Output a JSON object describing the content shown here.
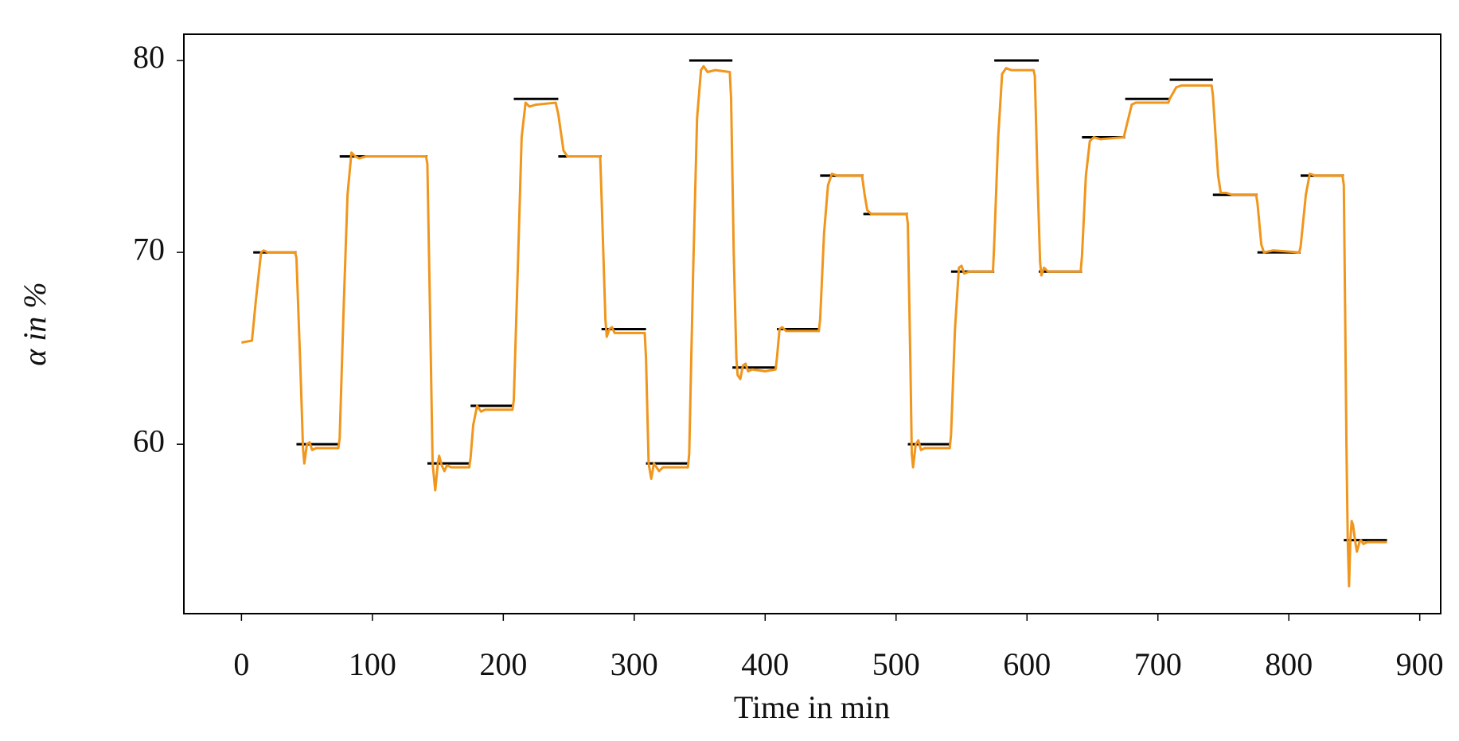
{
  "chart_data": {
    "type": "line",
    "x_label": "Time in min",
    "y_label": "α in %",
    "xlim": [
      -44,
      916
    ],
    "ylim": [
      51.17,
      81.37
    ],
    "xticks": [
      0,
      100,
      200,
      300,
      400,
      500,
      600,
      700,
      800,
      900
    ],
    "yticks": [
      60,
      70,
      80
    ],
    "series": [
      {
        "color": "#f0961c",
        "x": [
          0,
          8,
          11,
          15,
          17,
          20,
          41,
          42,
          45,
          47,
          48,
          50,
          52,
          54,
          57,
          74,
          75,
          78,
          81,
          84,
          87,
          90,
          95,
          141,
          142,
          144,
          146,
          147,
          148,
          150,
          151,
          153,
          155,
          157,
          160,
          174,
          175,
          177,
          180,
          183,
          186,
          207,
          208,
          211,
          214,
          217,
          220,
          225,
          240,
          242,
          246,
          249,
          274,
          275,
          278,
          279,
          281,
          283,
          285,
          308,
          309,
          311,
          312,
          313,
          315,
          317,
          319,
          322,
          341,
          342,
          345,
          348,
          351,
          353,
          356,
          362,
          373,
          374,
          376,
          378,
          379,
          381,
          383,
          385,
          387,
          390,
          400,
          408,
          409,
          411,
          413,
          416,
          441,
          442,
          445,
          448,
          451,
          455,
          474,
          476,
          478,
          481,
          508,
          509,
          511,
          512,
          513,
          515,
          517,
          519,
          522,
          541,
          542,
          545,
          548,
          550,
          552,
          556,
          574,
          575,
          578,
          581,
          584,
          588,
          605,
          606,
          608,
          610,
          611,
          613,
          616,
          641,
          642,
          645,
          648,
          651,
          656,
          674,
          675,
          680,
          683,
          708,
          709,
          714,
          718,
          741,
          742,
          746,
          748,
          752,
          757,
          775,
          776,
          779,
          781,
          788,
          808,
          809,
          813,
          816,
          820,
          841,
          842,
          843,
          844,
          845,
          846,
          847,
          848,
          849,
          851,
          852,
          854,
          855,
          857,
          860,
          875
        ],
        "values": [
          65.3,
          65.4,
          67.5,
          70,
          70.1,
          70,
          70,
          69.7,
          64,
          59.8,
          59,
          60,
          60.1,
          59.7,
          59.8,
          59.8,
          60.3,
          67,
          73,
          75.2,
          75,
          74.9,
          75,
          75,
          74.6,
          67,
          59,
          58.3,
          57.6,
          59,
          59.4,
          58.9,
          58.6,
          58.9,
          58.8,
          58.8,
          59.3,
          61,
          62,
          61.7,
          61.8,
          61.8,
          62.3,
          69,
          76,
          77.8,
          77.6,
          77.7,
          77.8,
          77.2,
          75.3,
          75,
          75,
          73,
          66.5,
          65.6,
          66,
          66.1,
          65.8,
          65.8,
          64.5,
          59,
          58.6,
          58.2,
          59,
          58.8,
          58.6,
          58.8,
          58.8,
          59.5,
          69,
          77,
          79.5,
          79.7,
          79.4,
          79.5,
          79.4,
          78,
          70,
          64.5,
          63.6,
          63.4,
          64.1,
          64.2,
          63.8,
          63.9,
          63.8,
          63.9,
          64.5,
          66,
          66.1,
          65.9,
          65.9,
          66.5,
          71,
          73.5,
          74.1,
          74,
          74,
          73,
          72.2,
          72,
          72,
          71.5,
          64,
          59.5,
          58.8,
          60,
          60.2,
          59.7,
          59.8,
          59.8,
          60.5,
          66,
          69.2,
          69.3,
          68.9,
          69,
          69,
          70.5,
          76,
          79.3,
          79.6,
          79.5,
          79.5,
          79.2,
          74,
          69.5,
          68.8,
          69.2,
          69,
          69,
          69.8,
          74,
          75.8,
          76,
          75.9,
          76,
          76.3,
          77.7,
          77.8,
          77.8,
          78,
          78.6,
          78.7,
          78.7,
          78.2,
          74,
          73.1,
          73.1,
          73,
          73,
          72.6,
          70.4,
          70,
          70.1,
          70,
          70.3,
          73,
          74.1,
          74,
          74,
          73.5,
          67,
          60,
          55,
          52.6,
          55,
          56,
          55.8,
          54.8,
          54.4,
          54.9,
          55,
          54.8,
          54.9,
          54.9
        ]
      }
    ],
    "setpoints": {
      "color": "#000000",
      "x_start": [
        9,
        42,
        75,
        142,
        175,
        208,
        242,
        275,
        309,
        342,
        375,
        409,
        442,
        475,
        509,
        542,
        575,
        609,
        642,
        675,
        709,
        742,
        776,
        809,
        842
      ],
      "x_end": [
        42,
        75,
        142,
        175,
        208,
        242,
        275,
        309,
        342,
        375,
        409,
        442,
        475,
        509,
        542,
        575,
        609,
        642,
        675,
        709,
        742,
        776,
        809,
        842,
        875
      ],
      "values": [
        70,
        60,
        75,
        59,
        62,
        78,
        75,
        66,
        59,
        80,
        64,
        66,
        74,
        72,
        60,
        69,
        80,
        69,
        76,
        78,
        79,
        73,
        70,
        74,
        55
      ]
    }
  }
}
